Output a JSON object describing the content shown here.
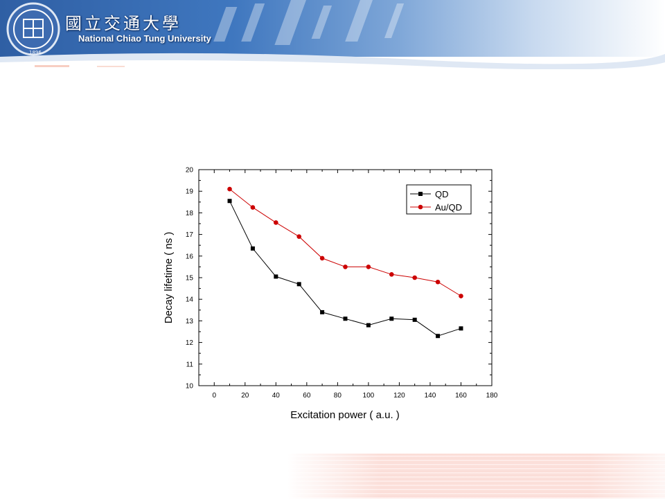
{
  "header": {
    "university_cn": "國立交通大學",
    "university_en": "National Chiao Tung University",
    "seal_year": "1896"
  },
  "chart_data": {
    "type": "line",
    "title": "",
    "xlabel": "Excitation power ( a.u. )",
    "ylabel": "Decay lifetime ( ns )",
    "xlim": [
      -10,
      180
    ],
    "ylim": [
      10,
      20
    ],
    "xticks": [
      0,
      20,
      40,
      60,
      80,
      100,
      120,
      140,
      160,
      180
    ],
    "yticks": [
      10,
      11,
      12,
      13,
      14,
      15,
      16,
      17,
      18,
      19,
      20
    ],
    "grid": false,
    "legend_position": "top-right",
    "series": [
      {
        "name": "QD",
        "color": "#000000",
        "marker": "square",
        "x": [
          10,
          25,
          40,
          55,
          70,
          85,
          100,
          115,
          130,
          145,
          160
        ],
        "y": [
          18.55,
          16.35,
          15.05,
          14.7,
          13.4,
          13.1,
          12.8,
          13.1,
          13.05,
          12.3,
          12.65
        ]
      },
      {
        "name": "Au/QD",
        "color": "#cc0000",
        "marker": "circle",
        "x": [
          10,
          25,
          40,
          55,
          70,
          85,
          100,
          115,
          130,
          145,
          160
        ],
        "y": [
          19.1,
          18.25,
          17.55,
          16.9,
          15.9,
          15.5,
          15.5,
          15.15,
          15.0,
          14.8,
          14.15
        ]
      }
    ]
  }
}
